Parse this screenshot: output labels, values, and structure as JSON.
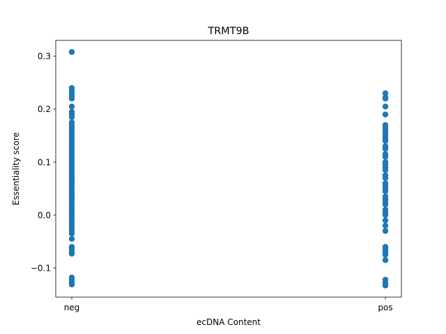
{
  "chart_data": {
    "type": "scatter",
    "title": "TRMT9B",
    "xlabel": "ecDNA Content",
    "ylabel": "Essentiality score",
    "categories": [
      "neg",
      "pos"
    ],
    "ylim": [
      -0.155,
      0.33
    ],
    "yticks": [
      -0.1,
      0.0,
      0.1,
      0.2,
      0.3
    ],
    "ytick_labels": [
      "−0.1",
      "0.0",
      "0.1",
      "0.2",
      "0.3"
    ],
    "grid": false,
    "legend": "none",
    "marker_color": "#1f77b4",
    "series": [
      {
        "category": "neg",
        "values": [
          0.308,
          0.24,
          0.236,
          0.23,
          0.225,
          0.22,
          0.205,
          0.195,
          0.19,
          0.185,
          0.175,
          0.17,
          0.165,
          0.16,
          0.155,
          0.15,
          0.145,
          0.14,
          0.135,
          0.13,
          0.125,
          0.12,
          0.115,
          0.11,
          0.105,
          0.1,
          0.095,
          0.09,
          0.085,
          0.08,
          0.075,
          0.07,
          0.065,
          0.06,
          0.055,
          0.05,
          0.045,
          0.04,
          0.035,
          0.03,
          0.025,
          0.02,
          0.015,
          0.01,
          0.005,
          0.0,
          -0.005,
          -0.01,
          -0.015,
          -0.02,
          -0.025,
          -0.03,
          -0.035,
          -0.045,
          -0.06,
          -0.065,
          -0.07,
          -0.073,
          -0.118,
          -0.122,
          -0.127,
          -0.131
        ]
      },
      {
        "category": "pos",
        "values": [
          0.23,
          0.222,
          0.22,
          0.205,
          0.19,
          0.17,
          0.165,
          0.16,
          0.155,
          0.15,
          0.145,
          0.14,
          0.13,
          0.125,
          0.115,
          0.11,
          0.1,
          0.095,
          0.09,
          0.085,
          0.075,
          0.07,
          0.06,
          0.055,
          0.05,
          0.045,
          0.035,
          0.03,
          0.025,
          0.02,
          0.01,
          0.005,
          0.0,
          -0.01,
          -0.02,
          -0.03,
          -0.06,
          -0.065,
          -0.07,
          -0.075,
          -0.085,
          -0.122,
          -0.128,
          -0.133
        ]
      }
    ]
  }
}
